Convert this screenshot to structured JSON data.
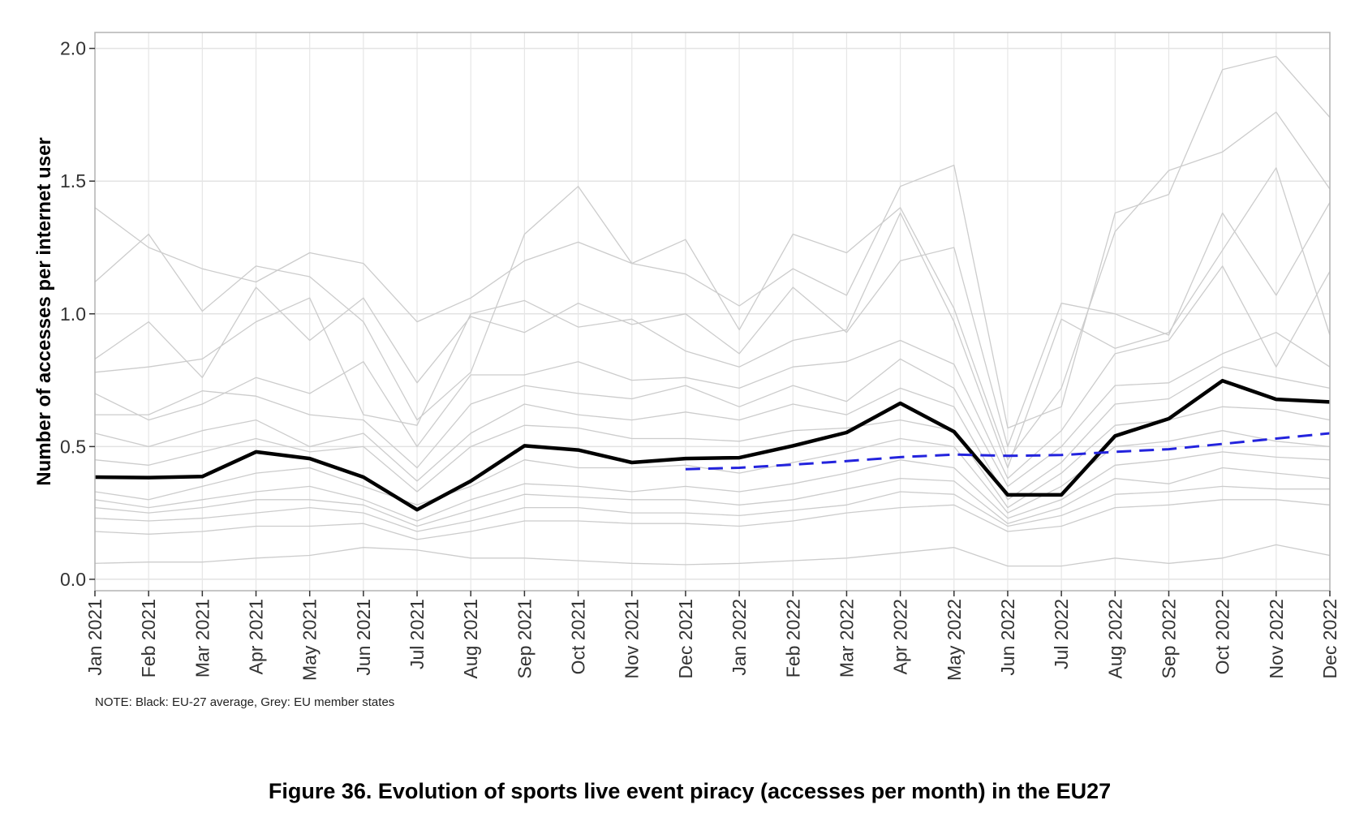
{
  "chart_data": {
    "type": "line",
    "y_axis_label": "Number of accesses per internet user",
    "note": "NOTE: Black: EU-27 average, Grey: EU member states",
    "caption": "Figure 36. Evolution of sports live event piracy (accesses per month) in the EU27",
    "categories": [
      "Jan 2021",
      "Feb 2021",
      "Mar 2021",
      "Apr 2021",
      "May 2021",
      "Jun 2021",
      "Jul 2021",
      "Aug 2021",
      "Sep 2021",
      "Oct 2021",
      "Nov 2021",
      "Dec 2021",
      "Jan 2022",
      "Feb 2022",
      "Mar 2022",
      "Apr 2022",
      "May 2022",
      "Jun 2022",
      "Jul 2022",
      "Aug 2022",
      "Sep 2022",
      "Oct 2022",
      "Nov 2022",
      "Dec 2022"
    ],
    "ylim": [
      -0.043,
      2.06
    ],
    "yticks": [
      {
        "value": 0,
        "label": "0.0"
      },
      0.5,
      {
        "value": 1,
        "label": "1.0"
      },
      1.5,
      {
        "value": 2,
        "label": "2.0"
      }
    ],
    "grid": true,
    "series": [
      {
        "color": "#cccccc",
        "values": [
          1.4,
          1.25,
          1.17,
          1.12,
          1.23,
          1.19,
          0.97,
          1.06,
          1.2,
          1.27,
          1.19,
          1.15,
          1.03,
          1.17,
          1.07,
          1.48,
          1.56,
          0.57,
          0.65,
          1.38,
          1.45,
          1.92,
          1.97,
          1.74
        ]
      },
      {
        "color": "#cccccc",
        "values": [
          1.12,
          1.3,
          1.01,
          1.18,
          1.14,
          0.97,
          0.6,
          0.78,
          1.3,
          1.48,
          1.19,
          1.28,
          0.94,
          1.3,
          1.23,
          1.4,
          1.02,
          0.45,
          0.72,
          1.31,
          1.54,
          1.61,
          1.76,
          1.47
        ]
      },
      {
        "color": "#cccccc",
        "values": [
          0.83,
          0.97,
          0.76,
          1.1,
          0.9,
          1.06,
          0.74,
          0.99,
          0.93,
          1.04,
          0.96,
          1.0,
          0.85,
          1.1,
          0.93,
          1.2,
          1.25,
          0.5,
          1.04,
          1.0,
          0.92,
          1.38,
          1.07,
          1.42
        ]
      },
      {
        "color": "#cccccc",
        "values": [
          0.78,
          0.8,
          0.83,
          0.97,
          1.06,
          0.62,
          0.58,
          1.0,
          1.05,
          0.95,
          0.98,
          0.86,
          0.8,
          0.9,
          0.94,
          1.38,
          0.97,
          0.42,
          0.98,
          0.87,
          0.93,
          1.24,
          1.55,
          0.92
        ]
      },
      {
        "color": "#cccccc",
        "values": [
          0.7,
          0.6,
          0.66,
          0.76,
          0.7,
          0.82,
          0.5,
          0.77,
          0.77,
          0.82,
          0.75,
          0.76,
          0.72,
          0.8,
          0.82,
          0.9,
          0.81,
          0.38,
          0.56,
          0.85,
          0.9,
          1.18,
          0.8,
          1.16
        ]
      },
      {
        "color": "#cccccc",
        "values": [
          0.62,
          0.62,
          0.71,
          0.69,
          0.62,
          0.6,
          0.42,
          0.66,
          0.73,
          0.7,
          0.68,
          0.73,
          0.65,
          0.73,
          0.67,
          0.83,
          0.72,
          0.35,
          0.5,
          0.73,
          0.74,
          0.85,
          0.93,
          0.8
        ]
      },
      {
        "color": "#cccccc",
        "values": [
          0.55,
          0.5,
          0.56,
          0.6,
          0.5,
          0.55,
          0.37,
          0.55,
          0.66,
          0.62,
          0.6,
          0.63,
          0.6,
          0.66,
          0.62,
          0.72,
          0.65,
          0.3,
          0.44,
          0.66,
          0.68,
          0.8,
          0.76,
          0.72
        ]
      },
      {
        "color": "#cccccc",
        "values": [
          0.45,
          0.43,
          0.48,
          0.53,
          0.48,
          0.5,
          0.33,
          0.5,
          0.58,
          0.57,
          0.53,
          0.53,
          0.52,
          0.56,
          0.57,
          0.6,
          0.56,
          0.27,
          0.4,
          0.58,
          0.6,
          0.65,
          0.64,
          0.6
        ]
      },
      {
        "color": "#cccccc",
        "values": [
          0.33,
          0.3,
          0.35,
          0.4,
          0.42,
          0.35,
          0.28,
          0.35,
          0.45,
          0.42,
          0.42,
          0.43,
          0.4,
          0.44,
          0.48,
          0.53,
          0.5,
          0.25,
          0.35,
          0.5,
          0.52,
          0.56,
          0.52,
          0.5
        ]
      },
      {
        "color": "#cccccc",
        "values": [
          0.3,
          0.27,
          0.3,
          0.33,
          0.35,
          0.3,
          0.22,
          0.3,
          0.36,
          0.35,
          0.33,
          0.35,
          0.33,
          0.36,
          0.4,
          0.45,
          0.42,
          0.23,
          0.3,
          0.43,
          0.45,
          0.48,
          0.46,
          0.45
        ]
      },
      {
        "color": "#cccccc",
        "values": [
          0.27,
          0.25,
          0.27,
          0.3,
          0.3,
          0.28,
          0.2,
          0.26,
          0.32,
          0.31,
          0.3,
          0.3,
          0.28,
          0.3,
          0.34,
          0.38,
          0.37,
          0.21,
          0.27,
          0.38,
          0.36,
          0.42,
          0.4,
          0.38
        ]
      },
      {
        "color": "#cccccc",
        "values": [
          0.23,
          0.22,
          0.23,
          0.25,
          0.27,
          0.25,
          0.18,
          0.22,
          0.27,
          0.27,
          0.25,
          0.25,
          0.24,
          0.26,
          0.28,
          0.33,
          0.32,
          0.2,
          0.24,
          0.32,
          0.33,
          0.35,
          0.34,
          0.34
        ]
      },
      {
        "color": "#cccccc",
        "values": [
          0.18,
          0.17,
          0.18,
          0.2,
          0.2,
          0.21,
          0.15,
          0.18,
          0.22,
          0.22,
          0.21,
          0.21,
          0.2,
          0.22,
          0.25,
          0.27,
          0.28,
          0.18,
          0.2,
          0.27,
          0.28,
          0.3,
          0.3,
          0.28
        ]
      },
      {
        "color": "#cccccc",
        "values": [
          0.06,
          0.065,
          0.065,
          0.08,
          0.09,
          0.12,
          0.11,
          0.08,
          0.08,
          0.07,
          0.06,
          0.055,
          0.06,
          0.07,
          0.08,
          0.1,
          0.12,
          0.05,
          0.05,
          0.08,
          0.06,
          0.08,
          0.13,
          0.09
        ]
      },
      {
        "color": "#000000",
        "values": [
          0.385,
          0.383,
          0.387,
          0.48,
          0.455,
          0.385,
          0.262,
          0.37,
          0.503,
          0.487,
          0.44,
          0.455,
          0.458,
          0.503,
          0.553,
          0.663,
          0.556,
          0.318,
          0.318,
          0.54,
          0.605,
          0.748,
          0.678,
          0.668
        ]
      },
      {
        "color": "#2323dd",
        "dashed": true,
        "values": [
          null,
          null,
          null,
          null,
          null,
          null,
          null,
          null,
          null,
          null,
          null,
          0.415,
          0.42,
          0.432,
          0.445,
          0.46,
          0.47,
          0.465,
          0.468,
          0.48,
          0.49,
          0.51,
          0.53,
          0.55
        ]
      }
    ]
  }
}
